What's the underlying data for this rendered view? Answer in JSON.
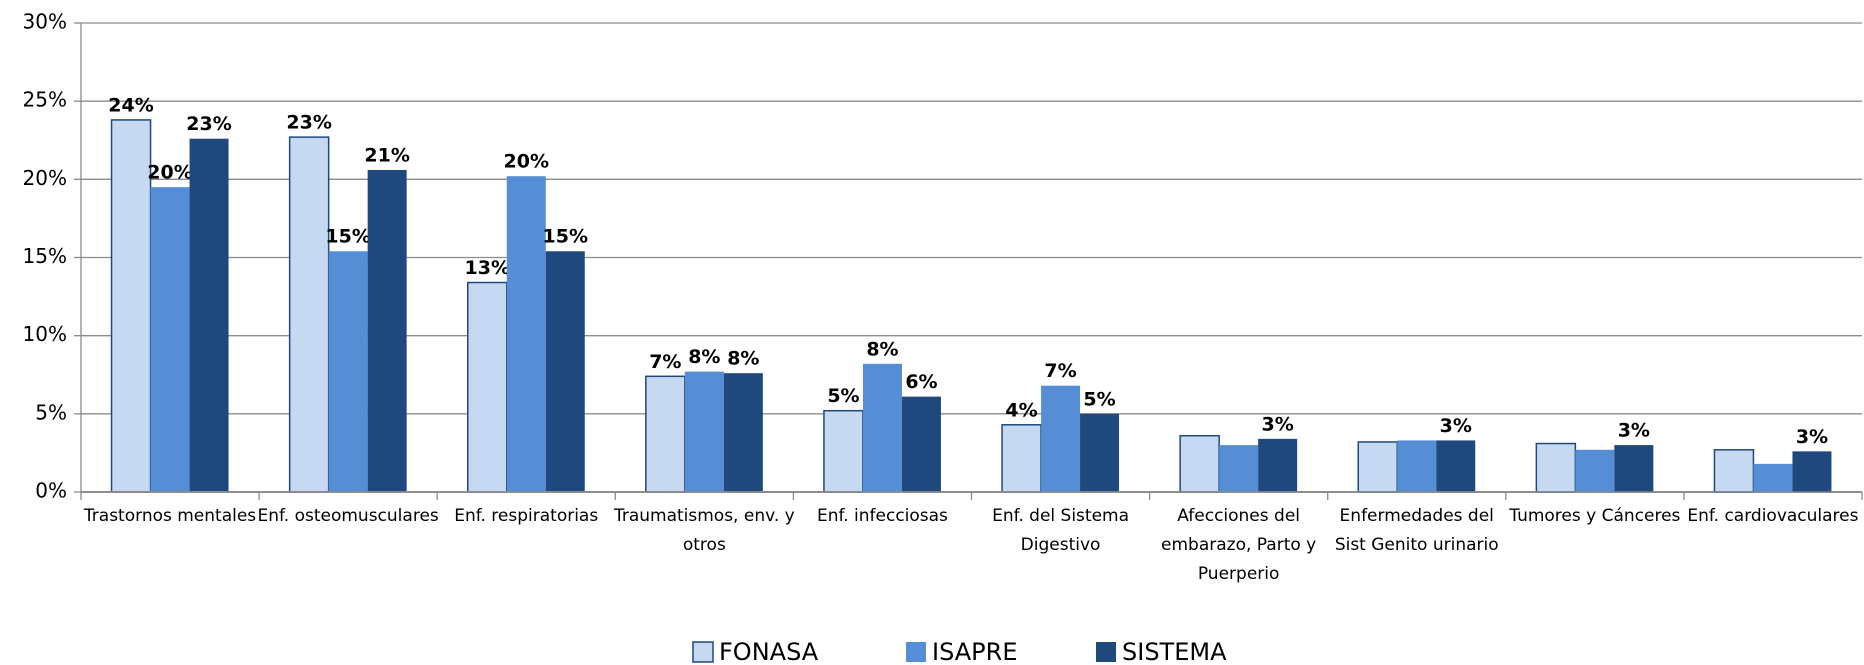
{
  "chart_data": {
    "type": "bar",
    "categories": [
      "Trastornos mentales",
      "Enf. osteomusculares",
      "Enf. respiratorias",
      "Traumatismos, env. y otros",
      "Enf. infecciosas",
      "Enf. del Sistema Digestivo",
      "Afecciones del embarazo, Parto y Puerperio",
      "Enfermedades del Sist Genito urinario",
      "Tumores y Cánceres",
      "Enf. cardiovaculares"
    ],
    "series": [
      {
        "name": "FONASA",
        "color": "#c6d9f1",
        "values": [
          23.8,
          22.7,
          13.4,
          7.4,
          5.2,
          4.3,
          3.6,
          3.2,
          3.1,
          2.7
        ],
        "value_labels": [
          "24%",
          "23%",
          "13%",
          "7%",
          "5%",
          "4%",
          null,
          null,
          null,
          null
        ]
      },
      {
        "name": "ISAPRE",
        "color": "#558ed5",
        "values": [
          19.5,
          15.4,
          20.2,
          7.7,
          8.2,
          6.8,
          3.0,
          3.3,
          2.7,
          1.8
        ],
        "value_labels": [
          "20%",
          "15%",
          "20%",
          "8%",
          "8%",
          "7%",
          null,
          null,
          null,
          null
        ]
      },
      {
        "name": "SISTEMA",
        "color": "#1f497d",
        "values": [
          22.6,
          20.6,
          15.4,
          7.6,
          6.1,
          5.0,
          3.4,
          3.3,
          3.0,
          2.6
        ],
        "value_labels": [
          "23%",
          "21%",
          "15%",
          "8%",
          "6%",
          "5%",
          "3%",
          "3%",
          "3%",
          "3%"
        ]
      }
    ],
    "ylim": [
      0,
      30
    ],
    "yticks": [
      {
        "value": 0,
        "label": "0%"
      },
      {
        "value": 5,
        "label": "5%"
      },
      {
        "value": 10,
        "label": "10%"
      },
      {
        "value": 15,
        "label": "15%"
      },
      {
        "value": 20,
        "label": "20%"
      },
      {
        "value": 25,
        "label": "25%"
      },
      {
        "value": 30,
        "label": "30%"
      }
    ],
    "grid": true,
    "legend": "bottom"
  }
}
